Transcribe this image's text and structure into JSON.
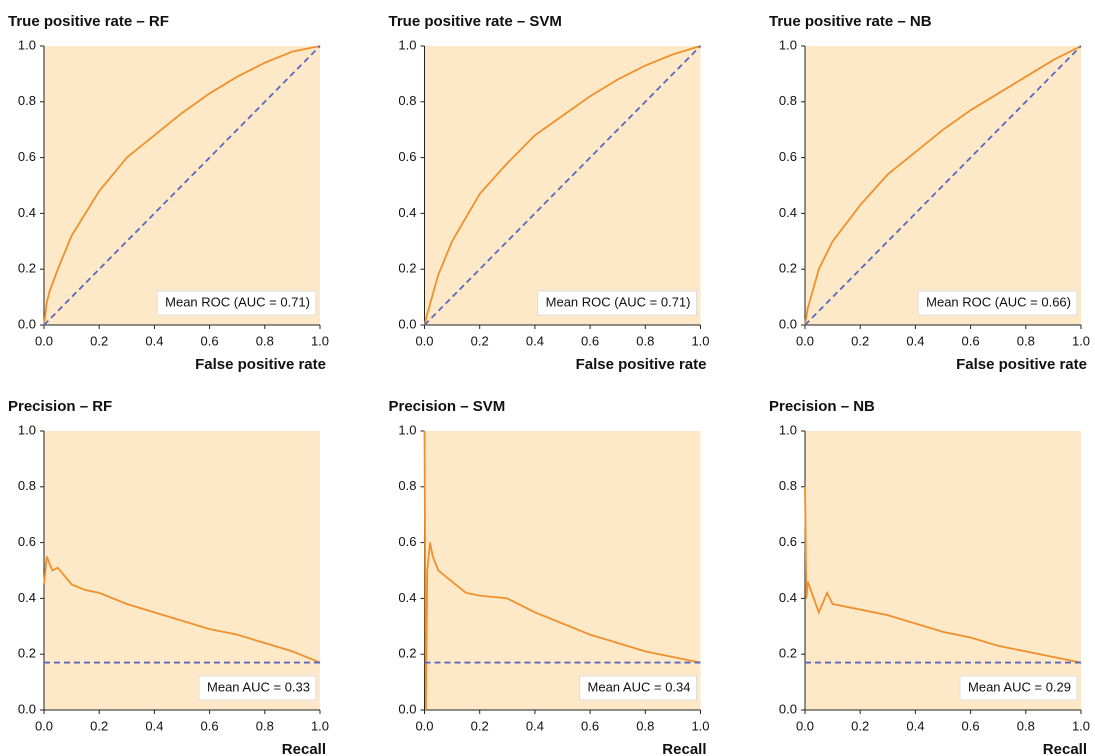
{
  "chart_data": [
    {
      "type": "line",
      "title": "True positive rate – RF",
      "xlabel": "False positive rate",
      "xlim": [
        0,
        1
      ],
      "ylim": [
        0,
        1
      ],
      "xticks": [
        {
          "value": 0,
          "label": "0.0"
        },
        0.2,
        0.4,
        0.6,
        0.8,
        {
          "value": 1,
          "label": "1.0"
        }
      ],
      "yticks": [
        {
          "value": 0,
          "label": "0.0"
        },
        0.2,
        0.4,
        0.6,
        0.8,
        {
          "value": 1,
          "label": "1.0"
        }
      ],
      "legend": "lower right",
      "background": "#fde9c8",
      "series": [
        {
          "name": "Mean ROC (AUC = 0.71)",
          "color": "#f0902c",
          "linestyle": "solid",
          "x": [
            0,
            0.01,
            0.02,
            0.05,
            0.1,
            0.15,
            0.2,
            0.3,
            0.4,
            0.5,
            0.6,
            0.7,
            0.8,
            0.9,
            1
          ],
          "values": [
            0,
            0.08,
            0.12,
            0.2,
            0.32,
            0.4,
            0.48,
            0.6,
            0.68,
            0.76,
            0.83,
            0.89,
            0.94,
            0.98,
            1
          ]
        },
        {
          "color": "#5a68c0",
          "linestyle": "dashed",
          "x": [
            0,
            1
          ],
          "values": [
            0,
            1
          ]
        }
      ]
    },
    {
      "type": "line",
      "title": "True positive rate – SVM",
      "xlabel": "False positive rate",
      "xlim": [
        0,
        1
      ],
      "ylim": [
        0,
        1
      ],
      "xticks": [
        {
          "value": 0,
          "label": "0.0"
        },
        0.2,
        0.4,
        0.6,
        0.8,
        {
          "value": 1,
          "label": "1.0"
        }
      ],
      "yticks": [
        {
          "value": 0,
          "label": "0.0"
        },
        0.2,
        0.4,
        0.6,
        0.8,
        {
          "value": 1,
          "label": "1.0"
        }
      ],
      "legend": "lower right",
      "background": "#fde9c8",
      "series": [
        {
          "name": "Mean ROC (AUC = 0.71)",
          "color": "#f0902c",
          "linestyle": "solid",
          "x": [
            0,
            0.01,
            0.05,
            0.1,
            0.2,
            0.3,
            0.4,
            0.5,
            0.6,
            0.7,
            0.8,
            0.9,
            1
          ],
          "values": [
            0,
            0.04,
            0.18,
            0.3,
            0.47,
            0.58,
            0.68,
            0.75,
            0.82,
            0.88,
            0.93,
            0.97,
            1
          ]
        },
        {
          "color": "#5a68c0",
          "linestyle": "dashed",
          "x": [
            0,
            1
          ],
          "values": [
            0,
            1
          ]
        }
      ]
    },
    {
      "type": "line",
      "title": "True positive rate – NB",
      "xlabel": "False positive rate",
      "xlim": [
        0,
        1
      ],
      "ylim": [
        0,
        1
      ],
      "xticks": [
        {
          "value": 0,
          "label": "0.0"
        },
        0.2,
        0.4,
        0.6,
        0.8,
        {
          "value": 1,
          "label": "1.0"
        }
      ],
      "yticks": [
        {
          "value": 0,
          "label": "0.0"
        },
        0.2,
        0.4,
        0.6,
        0.8,
        {
          "value": 1,
          "label": "1.0"
        }
      ],
      "legend": "lower right",
      "background": "#fde9c8",
      "series": [
        {
          "name": "Mean ROC (AUC = 0.66)",
          "color": "#f0902c",
          "linestyle": "solid",
          "x": [
            0,
            0.01,
            0.05,
            0.1,
            0.2,
            0.3,
            0.4,
            0.5,
            0.6,
            0.7,
            0.8,
            0.9,
            1
          ],
          "values": [
            0,
            0.06,
            0.2,
            0.3,
            0.43,
            0.54,
            0.62,
            0.7,
            0.77,
            0.83,
            0.89,
            0.95,
            1
          ]
        },
        {
          "color": "#5a68c0",
          "linestyle": "dashed",
          "x": [
            0,
            1
          ],
          "values": [
            0,
            1
          ]
        }
      ]
    },
    {
      "type": "line",
      "title": "Precision – RF",
      "xlabel": "Recall",
      "xlim": [
        0,
        1
      ],
      "ylim": [
        0,
        1
      ],
      "xticks": [
        {
          "value": 0,
          "label": "0.0"
        },
        0.2,
        0.4,
        0.6,
        0.8,
        {
          "value": 1,
          "label": "1.0"
        }
      ],
      "yticks": [
        {
          "value": 0,
          "label": "0.0"
        },
        0.2,
        0.4,
        0.6,
        0.8,
        {
          "value": 1,
          "label": "1.0"
        }
      ],
      "legend": "lower right",
      "background": "#fde9c8",
      "series": [
        {
          "name": "Mean AUC = 0.33",
          "color": "#f0902c",
          "linestyle": "solid",
          "x": [
            0,
            0.01,
            0.03,
            0.05,
            0.1,
            0.15,
            0.2,
            0.3,
            0.4,
            0.5,
            0.6,
            0.7,
            0.8,
            0.9,
            1
          ],
          "values": [
            0.45,
            0.55,
            0.5,
            0.51,
            0.45,
            0.43,
            0.42,
            0.38,
            0.35,
            0.32,
            0.29,
            0.27,
            0.24,
            0.21,
            0.17
          ]
        },
        {
          "color": "#5a68c0",
          "linestyle": "dashed",
          "x": [
            0,
            1
          ],
          "values": [
            0.17,
            0.17
          ]
        }
      ]
    },
    {
      "type": "line",
      "title": "Precision – SVM",
      "xlabel": "Recall",
      "xlim": [
        0,
        1
      ],
      "ylim": [
        0,
        1
      ],
      "xticks": [
        {
          "value": 0,
          "label": "0.0"
        },
        0.2,
        0.4,
        0.6,
        0.8,
        {
          "value": 1,
          "label": "1.0"
        }
      ],
      "yticks": [
        {
          "value": 0,
          "label": "0.0"
        },
        0.2,
        0.4,
        0.6,
        0.8,
        {
          "value": 1,
          "label": "1.0"
        }
      ],
      "legend": "lower right",
      "background": "#fde9c8",
      "series": [
        {
          "name": "Mean AUC = 0.34",
          "color": "#f0902c",
          "linestyle": "solid",
          "x": [
            0,
            0.005,
            0.01,
            0.02,
            0.03,
            0.05,
            0.1,
            0.15,
            0.2,
            0.3,
            0.4,
            0.5,
            0.6,
            0.7,
            0.8,
            0.9,
            1
          ],
          "values": [
            1,
            0,
            0.5,
            0.6,
            0.55,
            0.5,
            0.46,
            0.42,
            0.41,
            0.4,
            0.35,
            0.31,
            0.27,
            0.24,
            0.21,
            0.19,
            0.17
          ]
        },
        {
          "color": "#5a68c0",
          "linestyle": "dashed",
          "x": [
            0,
            1
          ],
          "values": [
            0.17,
            0.17
          ]
        }
      ]
    },
    {
      "type": "line",
      "title": "Precision – NB",
      "xlabel": "Recall",
      "xlim": [
        0,
        1
      ],
      "ylim": [
        0,
        1
      ],
      "xticks": [
        {
          "value": 0,
          "label": "0.0"
        },
        0.2,
        0.4,
        0.6,
        0.8,
        {
          "value": 1,
          "label": "1.0"
        }
      ],
      "yticks": [
        {
          "value": 0,
          "label": "0.0"
        },
        0.2,
        0.4,
        0.6,
        0.8,
        {
          "value": 1,
          "label": "1.0"
        }
      ],
      "legend": "lower right",
      "background": "#fde9c8",
      "series": [
        {
          "name": "Mean AUC = 0.29",
          "color": "#f0902c",
          "linestyle": "solid",
          "x": [
            0,
            0.005,
            0.01,
            0.05,
            0.08,
            0.1,
            0.2,
            0.3,
            0.4,
            0.5,
            0.6,
            0.7,
            0.8,
            0.9,
            1
          ],
          "values": [
            0.8,
            0.4,
            0.46,
            0.35,
            0.42,
            0.38,
            0.36,
            0.34,
            0.31,
            0.28,
            0.26,
            0.23,
            0.21,
            0.19,
            0.17
          ]
        },
        {
          "color": "#5a68c0",
          "linestyle": "dashed",
          "x": [
            0,
            1
          ],
          "values": [
            0.17,
            0.17
          ]
        }
      ]
    }
  ]
}
